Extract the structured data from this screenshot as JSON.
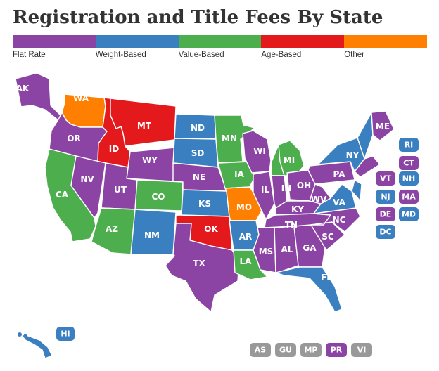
{
  "title": "Registration and Title Fees By State",
  "colors": {
    "flat": "#8c44a4",
    "weight": "#3a7fc0",
    "value": "#4cae4c",
    "age": "#e3191c",
    "other": "#ff8000",
    "territory": "#999999"
  },
  "legend": [
    {
      "label": "Flat Rate",
      "key": "flat"
    },
    {
      "label": "Weight-Based",
      "key": "weight"
    },
    {
      "label": "Value-Based",
      "key": "value"
    },
    {
      "label": "Age-Based",
      "key": "age"
    },
    {
      "label": "Other",
      "key": "other"
    }
  ],
  "states": [
    {
      "abbr": "AK",
      "key": "flat"
    },
    {
      "abbr": "WA",
      "key": "other"
    },
    {
      "abbr": "OR",
      "key": "flat"
    },
    {
      "abbr": "CA",
      "key": "value"
    },
    {
      "abbr": "ID",
      "key": "age"
    },
    {
      "abbr": "NV",
      "key": "flat"
    },
    {
      "abbr": "MT",
      "key": "age"
    },
    {
      "abbr": "WY",
      "key": "flat"
    },
    {
      "abbr": "UT",
      "key": "flat"
    },
    {
      "abbr": "AZ",
      "key": "value"
    },
    {
      "abbr": "CO",
      "key": "value"
    },
    {
      "abbr": "NM",
      "key": "weight"
    },
    {
      "abbr": "ND",
      "key": "weight"
    },
    {
      "abbr": "SD",
      "key": "weight"
    },
    {
      "abbr": "NE",
      "key": "flat"
    },
    {
      "abbr": "KS",
      "key": "weight"
    },
    {
      "abbr": "OK",
      "key": "age"
    },
    {
      "abbr": "TX",
      "key": "flat"
    },
    {
      "abbr": "MN",
      "key": "value"
    },
    {
      "abbr": "IA",
      "key": "value"
    },
    {
      "abbr": "MO",
      "key": "other"
    },
    {
      "abbr": "AR",
      "key": "weight"
    },
    {
      "abbr": "LA",
      "key": "value"
    },
    {
      "abbr": "WI",
      "key": "flat"
    },
    {
      "abbr": "IL",
      "key": "flat"
    },
    {
      "abbr": "MI",
      "key": "value"
    },
    {
      "abbr": "IN",
      "key": "flat"
    },
    {
      "abbr": "OH",
      "key": "flat"
    },
    {
      "abbr": "KY",
      "key": "flat"
    },
    {
      "abbr": "TN",
      "key": "flat"
    },
    {
      "abbr": "MS",
      "key": "flat"
    },
    {
      "abbr": "AL",
      "key": "flat"
    },
    {
      "abbr": "GA",
      "key": "flat"
    },
    {
      "abbr": "FL",
      "key": "weight"
    },
    {
      "abbr": "SC",
      "key": "flat"
    },
    {
      "abbr": "NC",
      "key": "flat"
    },
    {
      "abbr": "VA",
      "key": "weight"
    },
    {
      "abbr": "WV",
      "key": "flat"
    },
    {
      "abbr": "PA",
      "key": "flat"
    },
    {
      "abbr": "NY",
      "key": "weight"
    },
    {
      "abbr": "ME",
      "key": "flat"
    },
    {
      "abbr": "HI",
      "key": "weight"
    }
  ],
  "small_states": [
    {
      "abbr": "RI",
      "key": "weight"
    },
    {
      "abbr": "CT",
      "key": "flat"
    },
    {
      "abbr": "VT",
      "key": "flat"
    },
    {
      "abbr": "NH",
      "key": "weight"
    },
    {
      "abbr": "NJ",
      "key": "weight"
    },
    {
      "abbr": "MA",
      "key": "flat"
    },
    {
      "abbr": "DE",
      "key": "flat"
    },
    {
      "abbr": "MD",
      "key": "weight"
    },
    {
      "abbr": "DC",
      "key": "weight"
    }
  ],
  "territories": [
    {
      "abbr": "AS",
      "key": "territory"
    },
    {
      "abbr": "GU",
      "key": "territory"
    },
    {
      "abbr": "MP",
      "key": "territory"
    },
    {
      "abbr": "PR",
      "key": "flat"
    },
    {
      "abbr": "VI",
      "key": "territory"
    }
  ]
}
